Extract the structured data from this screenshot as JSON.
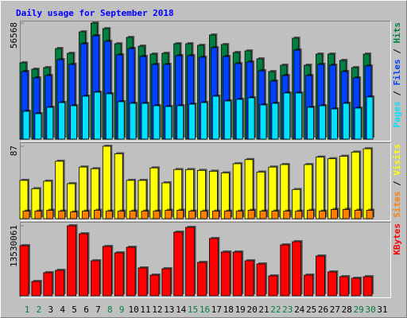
{
  "chart_data": [
    {
      "type": "bar",
      "title": "Daily usage for September 2018",
      "ylim": [
        0,
        56568
      ],
      "yticks": [
        56568
      ],
      "series": [
        {
          "name": "Hits",
          "color": "#008040",
          "values": [
            37195,
            34096,
            34871,
            44170,
            41845,
            52306,
            56568,
            53856,
            46494,
            49594,
            45332,
            41457,
            41845,
            46494,
            46494,
            45719,
            50756,
            46107,
            42232,
            43007,
            39133,
            32933,
            36033,
            49206,
            36033,
            41457,
            41457,
            38358,
            34871,
            41457,
            0
          ]
        },
        {
          "name": "Files",
          "color": "#0040FF",
          "values": [
            32933,
            29834,
            30996,
            38745,
            36420,
            46494,
            50369,
            47656,
            41070,
            44170,
            40295,
            36420,
            36420,
            40682,
            40682,
            39907,
            44557,
            40295,
            36808,
            37583,
            33321,
            28284,
            30996,
            43394,
            30996,
            36420,
            36033,
            32933,
            29834,
            35645,
            0
          ]
        },
        {
          "name": "Pages",
          "color": "#00E0FF",
          "values": [
            13561,
            12398,
            15498,
            17823,
            16273,
            20922,
            22860,
            22085,
            18210,
            17435,
            17435,
            16273,
            15885,
            16273,
            17048,
            17823,
            20922,
            18598,
            19373,
            20147,
            16660,
            17435,
            22472,
            22472,
            15498,
            16273,
            14723,
            17435,
            15110,
            20535,
            0
          ]
        }
      ]
    },
    {
      "type": "bar",
      "ylim": [
        0,
        87
      ],
      "yticks": [
        87
      ],
      "series": [
        {
          "name": "Visits",
          "color": "#FFFF00",
          "values": [
            46,
            36,
            45,
            69,
            42,
            62,
            60,
            87,
            78,
            46,
            46,
            61,
            43,
            59,
            59,
            58,
            57,
            55,
            66,
            71,
            56,
            62,
            65,
            35,
            65,
            74,
            72,
            75,
            80,
            84,
            0
          ]
        },
        {
          "name": "Sites",
          "color": "#FF8000",
          "values": [
            9,
            9,
            10,
            9,
            8,
            9,
            10,
            9,
            9,
            9,
            9,
            9,
            10,
            10,
            9,
            9,
            9,
            9,
            9,
            10,
            9,
            9,
            9,
            9,
            10,
            9,
            11,
            11,
            10,
            10,
            0
          ]
        }
      ]
    },
    {
      "type": "bar",
      "ylim": [
        0,
        13530061
      ],
      "yticks": [
        13530061
      ],
      "categories": [
        "1",
        "2",
        "3",
        "4",
        "5",
        "6",
        "7",
        "8",
        "9",
        "10",
        "11",
        "12",
        "13",
        "14",
        "15",
        "16",
        "17",
        "18",
        "19",
        "20",
        "21",
        "22",
        "23",
        "24",
        "25",
        "26",
        "27",
        "28",
        "29",
        "30",
        "31"
      ],
      "category_colors": [
        "#008040",
        "#008040",
        "#000000",
        "#000000",
        "#000000",
        "#000000",
        "#000000",
        "#008040",
        "#008040",
        "#000000",
        "#000000",
        "#000000",
        "#000000",
        "#000000",
        "#008040",
        "#008040",
        "#000000",
        "#000000",
        "#000000",
        "#000000",
        "#000000",
        "#008040",
        "#008040",
        "#000000",
        "#000000",
        "#000000",
        "#000000",
        "#000000",
        "#008040",
        "#008040",
        "#000000"
      ],
      "series": [
        {
          "name": "KBytes",
          "color": "#FF0000",
          "values": [
            9686313,
            2767518,
            4458779,
            4920032,
            13530061,
            11992578,
            6765044,
            9532562,
            8302554,
            9378811,
            5381285,
            3997526,
            5227534,
            12300080,
            13222586,
            6457542,
            11070072,
            8456305,
            8456305,
            6765044,
            6150040,
            3843775,
            9840064,
            10455068,
            3997526,
            7687550,
            4612530,
            3690024,
            3382522,
            3690024,
            0
          ]
        }
      ]
    }
  ]
}
